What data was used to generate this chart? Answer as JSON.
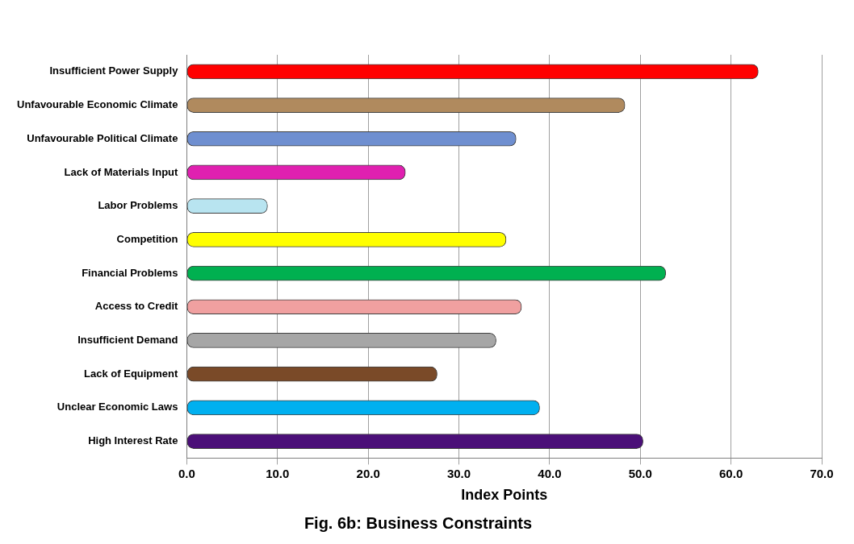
{
  "chart_data": {
    "type": "bar",
    "orientation": "horizontal",
    "title": "Fig. 6b: Business Constraints",
    "xlabel": "Index Points",
    "categories": [
      "Insufficient Power Supply",
      "Unfavourable Economic Climate",
      "Unfavourable Political Climate",
      "Lack of Materials Input",
      "Labor Problems",
      "Competition",
      "Financial Problems",
      "Access to Credit",
      "Insufficient Demand",
      "Lack of Equipment",
      "Unclear Economic Laws",
      "High Interest Rate"
    ],
    "values": [
      63.0,
      48.3,
      36.3,
      24.1,
      8.9,
      35.2,
      52.8,
      36.9,
      34.1,
      27.6,
      38.9,
      50.3
    ],
    "colors": [
      "#ff0000",
      "#b08a5e",
      "#6f8fd0",
      "#e020b0",
      "#b8e4f0",
      "#ffff00",
      "#00b050",
      "#f0a0a0",
      "#a6a6a6",
      "#7a4a28",
      "#00b0f0",
      "#4b0f78"
    ],
    "xlim": [
      0,
      70
    ],
    "xticks": [
      {
        "value": 0,
        "label": "0.0"
      },
      {
        "value": 10,
        "label": "10.0"
      },
      {
        "value": 20,
        "label": "20.0"
      },
      {
        "value": 30,
        "label": "30.0"
      },
      {
        "value": 40,
        "label": "40.0"
      },
      {
        "value": 50,
        "label": "50.0"
      },
      {
        "value": 60,
        "label": "60.0"
      },
      {
        "value": 70,
        "label": "70.0"
      }
    ],
    "grid": "x"
  }
}
